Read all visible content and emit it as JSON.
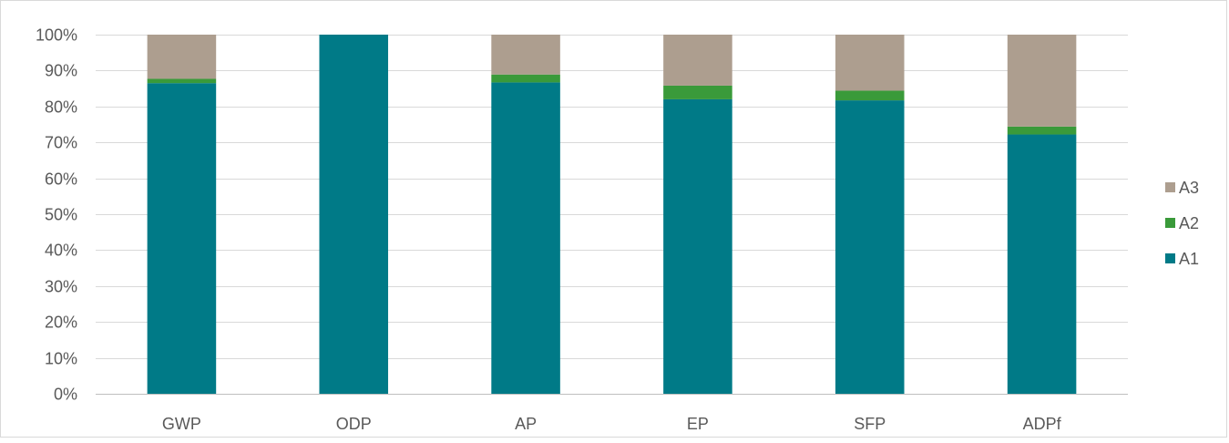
{
  "chart_data": {
    "type": "bar",
    "stacked": true,
    "title": "",
    "xlabel": "",
    "ylabel": "",
    "ylim": [
      0,
      100
    ],
    "y_ticks": [
      "0%",
      "10%",
      "20%",
      "30%",
      "40%",
      "50%",
      "60%",
      "70%",
      "80%",
      "90%",
      "100%"
    ],
    "categories": [
      "GWP",
      "ODP",
      "AP",
      "EP",
      "SFP",
      "ADPf"
    ],
    "series": [
      {
        "name": "A1",
        "color": "#007A87",
        "values": [
          86.5,
          100,
          86.7,
          82.0,
          81.7,
          72.2
        ]
      },
      {
        "name": "A2",
        "color": "#3A9A3A",
        "values": [
          1.2,
          0,
          2.2,
          3.8,
          2.7,
          2.2
        ]
      },
      {
        "name": "A3",
        "color": "#AD9E8F",
        "values": [
          12.3,
          0,
          11.1,
          14.2,
          15.6,
          25.6
        ]
      }
    ],
    "grid": true,
    "legend": {
      "position": "right",
      "order": [
        "A3",
        "A2",
        "A1"
      ]
    }
  }
}
